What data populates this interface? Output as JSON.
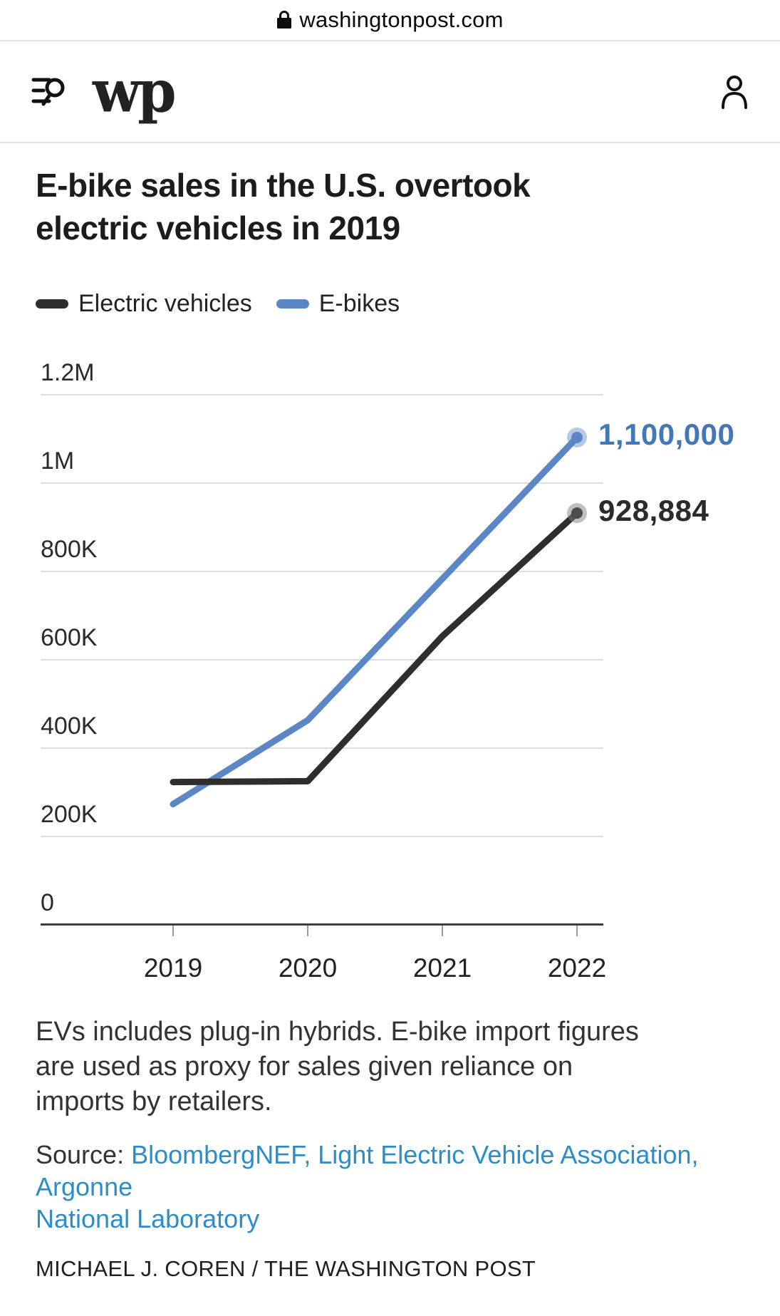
{
  "browser": {
    "url": "washingtonpost.com"
  },
  "header": {
    "logo_text": "wp"
  },
  "article": {
    "title": "E-bike sales in the U.S. overtook electric vehicles in 2019",
    "note_lines": [
      "EVs includes plug-in hybrids. E-bike import figures are used as proxy for sales given reliance on imports by retailers."
    ],
    "source_prefix": "Source:",
    "source_link_line1": "BloombergNEF, Light Electric Vehicle Association, Argonne",
    "source_link_line2": "National Laboratory",
    "byline": "MICHAEL J. COREN / THE WASHINGTON POST",
    "link_color": "#2b8dc9"
  },
  "chart_data": {
    "type": "line",
    "title": "E-bike sales in the U.S. overtook electric vehicles in 2019",
    "x": [
      2019,
      2020,
      2021,
      2022
    ],
    "series": [
      {
        "id": "electric-vehicles",
        "name": "Electric vehicles",
        "color": "#2e2e2e",
        "dot_color": "#4d4d4d",
        "halo_color": "rgba(130,130,130,0.5)",
        "label_color": "#2b2b2b",
        "values": [
          320000,
          322000,
          650000,
          928884
        ],
        "end_label": "928,884"
      },
      {
        "id": "e-bikes",
        "name": "E-bikes",
        "color": "#5b87c5",
        "dot_color": "#5b87c5",
        "halo_color": "rgba(91,135,197,0.45)",
        "label_color": "#4477b8",
        "values": [
          270000,
          460000,
          780000,
          1100000
        ],
        "end_label": "1,100,000"
      }
    ],
    "ylim": [
      0,
      1200000
    ],
    "yticks": [
      "1.2M",
      "1M",
      "800K",
      "600K",
      "400K",
      "200K",
      "0"
    ],
    "grid": "horizontal",
    "legend_position": "top"
  }
}
